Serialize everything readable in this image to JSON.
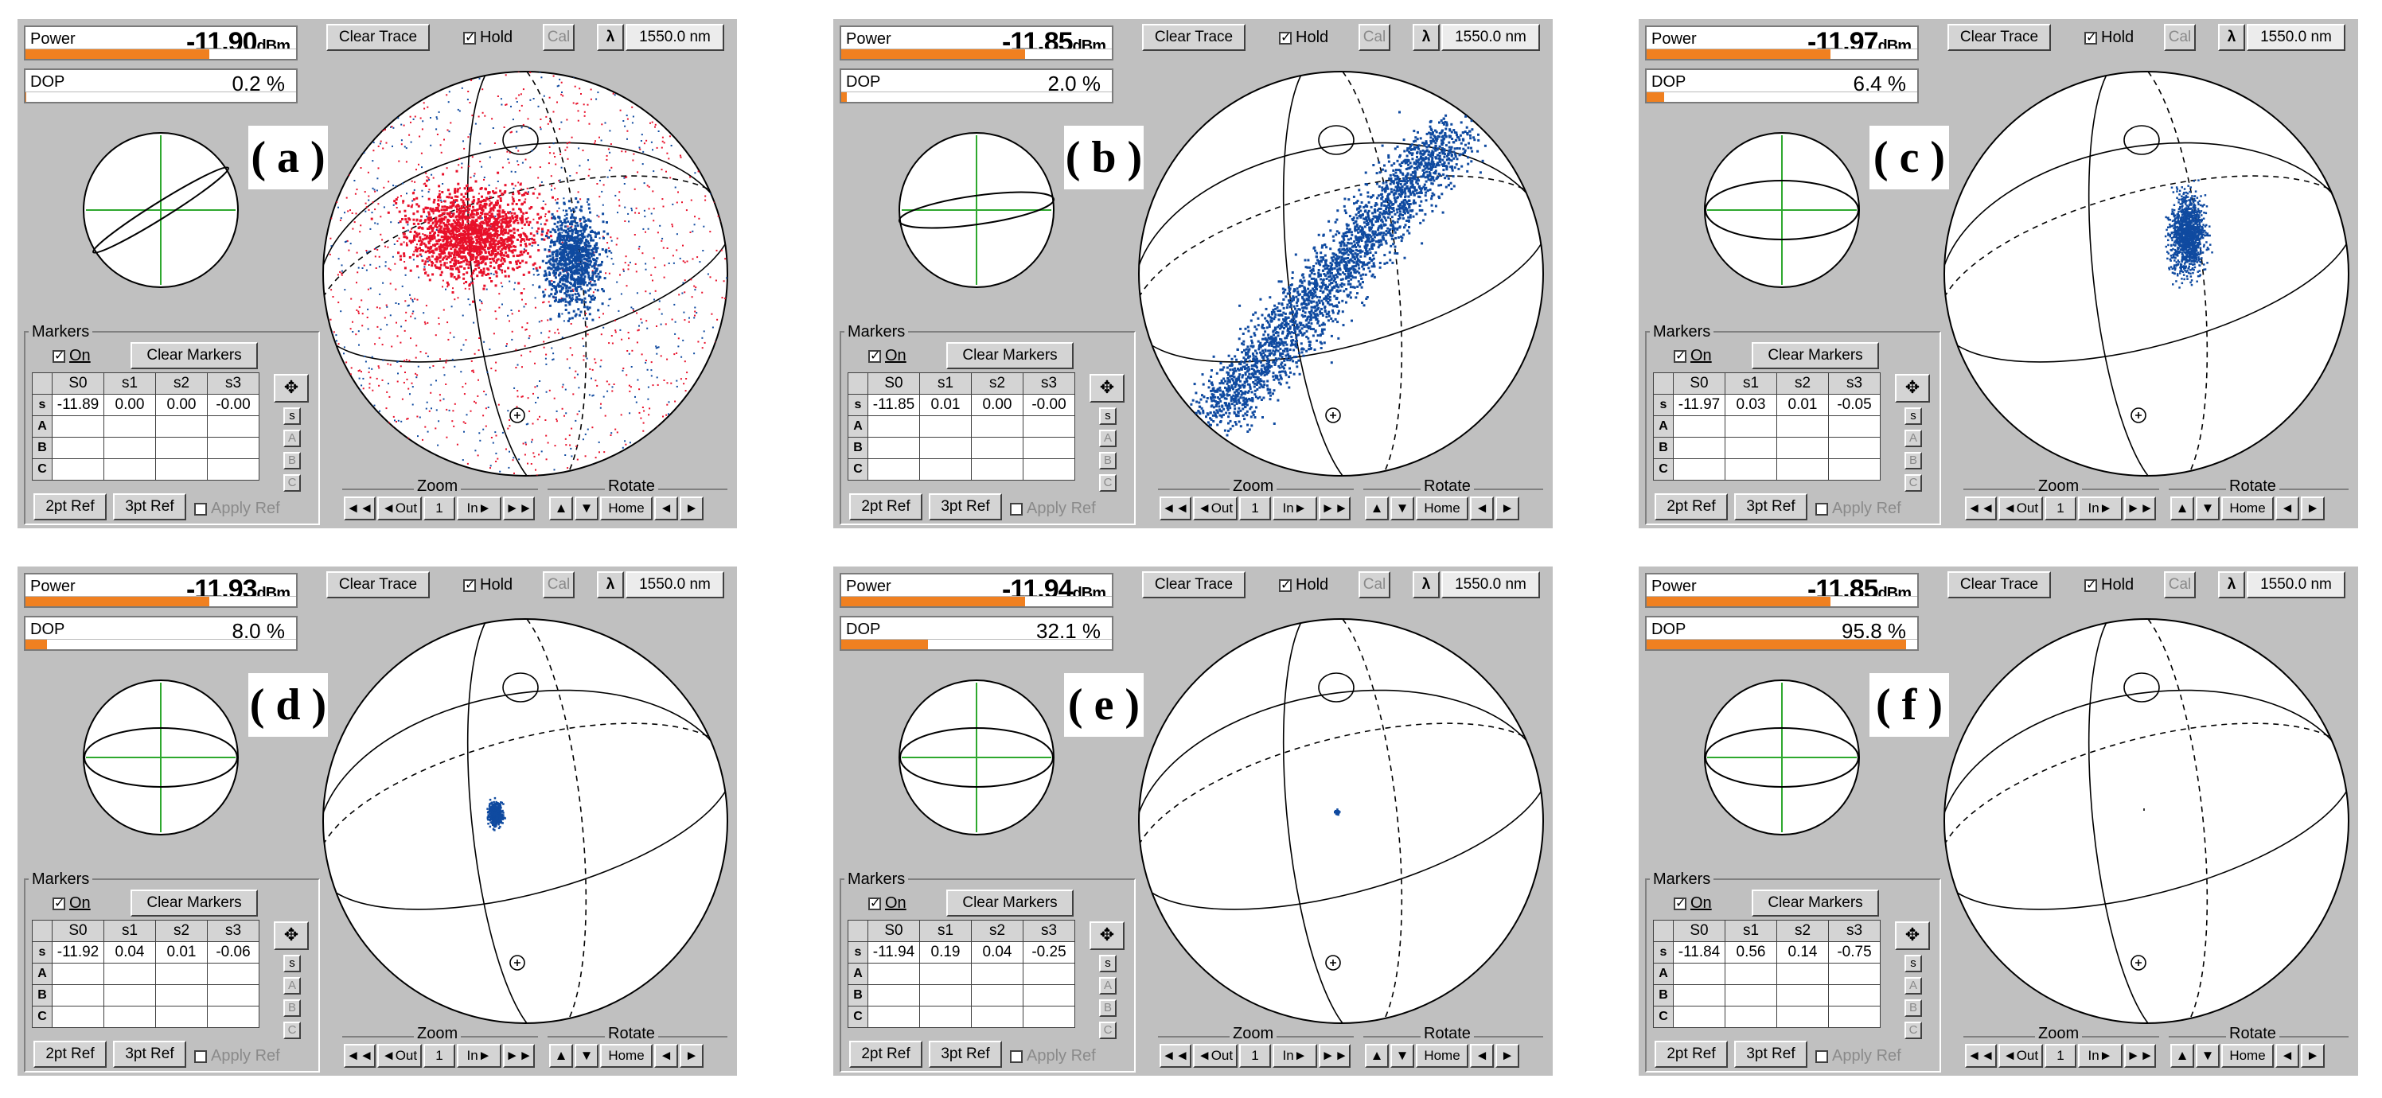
{
  "common": {
    "power_label": "Power",
    "power_unit": "dBm",
    "dop_label": "DOP",
    "clear_trace": "Clear Trace",
    "hold": "Hold",
    "cal": "Cal",
    "lambda": "λ",
    "wavelength": "1550.0 nm",
    "markers_title": "Markers",
    "on_label": "On",
    "clear_markers": "Clear Markers",
    "col_headers": [
      "S0",
      "s1",
      "s2",
      "s3"
    ],
    "row_labels": [
      "s",
      "A",
      "B",
      "C"
    ],
    "ref2": "2pt Ref",
    "ref3": "3pt Ref",
    "apply_ref": "Apply Ref",
    "zoom_title": "Zoom",
    "rotate_title": "Rotate",
    "zoom_btns": [
      "◄◄",
      "◄Out",
      "1",
      "In►",
      "►►"
    ],
    "rotate_btns": [
      "▲",
      "▼",
      "Home",
      "◄",
      "►"
    ],
    "colors": {
      "accent": "#f08020",
      "red": "#e8102a",
      "blue": "#0f4aa0",
      "grid": "#2ea82e"
    }
  },
  "panels": [
    {
      "tag": "( a )",
      "power": "-11.90",
      "power_fill": 0.68,
      "dop": "0.2 %",
      "dop_fill": 0.002,
      "s": [
        "-11.89",
        "0.00",
        "0.00",
        "-0.00"
      ],
      "ellipse": "line"
    },
    {
      "tag": "( b )",
      "power": "-11.85",
      "power_fill": 0.68,
      "dop": "2.0 %",
      "dop_fill": 0.02,
      "s": [
        "-11.85",
        "0.01",
        "0.00",
        "-0.00"
      ],
      "ellipse": "thin"
    },
    {
      "tag": "( c )",
      "power": "-11.97",
      "power_fill": 0.68,
      "dop": "6.4 %",
      "dop_fill": 0.064,
      "s": [
        "-11.97",
        "0.03",
        "0.01",
        "-0.05"
      ],
      "ellipse": "wide"
    },
    {
      "tag": "( d )",
      "power": "-11.93",
      "power_fill": 0.68,
      "dop": "8.0 %",
      "dop_fill": 0.08,
      "s": [
        "-11.92",
        "0.04",
        "0.01",
        "-0.06"
      ],
      "ellipse": "wide"
    },
    {
      "tag": "( e )",
      "power": "-11.94",
      "power_fill": 0.68,
      "dop": "32.1 %",
      "dop_fill": 0.321,
      "s": [
        "-11.94",
        "0.19",
        "0.04",
        "-0.25"
      ],
      "ellipse": "wide"
    },
    {
      "tag": "( f )",
      "power": "-11.85",
      "power_fill": 0.68,
      "dop": "95.8 %",
      "dop_fill": 0.958,
      "s": [
        "-11.84",
        "0.56",
        "0.14",
        "-0.75"
      ],
      "ellipse": "wide"
    }
  ]
}
